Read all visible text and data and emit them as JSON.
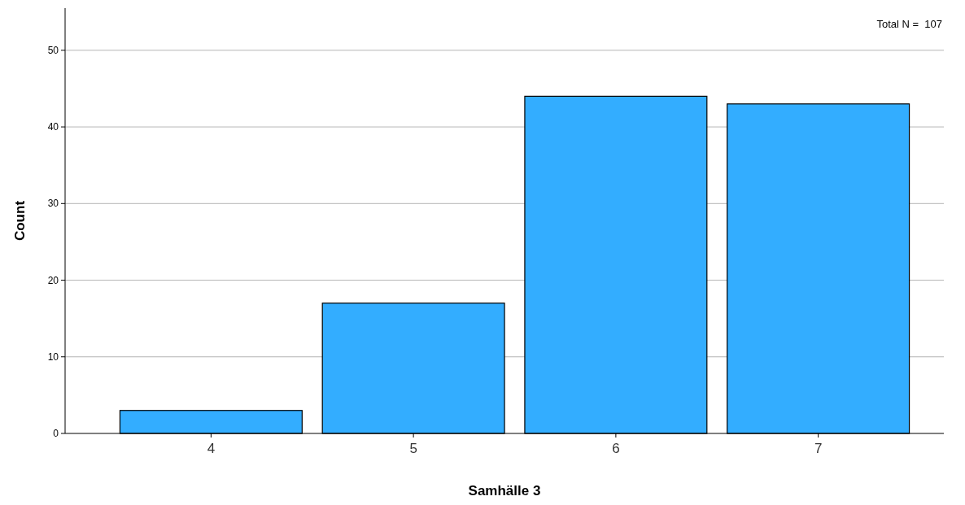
{
  "chart_data": {
    "type": "bar",
    "xlabel": "Samhälle 3",
    "ylabel": "Count",
    "categories": [
      "4",
      "5",
      "6",
      "7"
    ],
    "values": [
      3,
      17,
      44,
      43
    ],
    "color": "#33adff",
    "ylim": [
      0,
      55.5
    ],
    "yticks": [
      0,
      10,
      20,
      30,
      40,
      50
    ],
    "grid": "y",
    "annotations": [
      "Total N =  107"
    ]
  }
}
